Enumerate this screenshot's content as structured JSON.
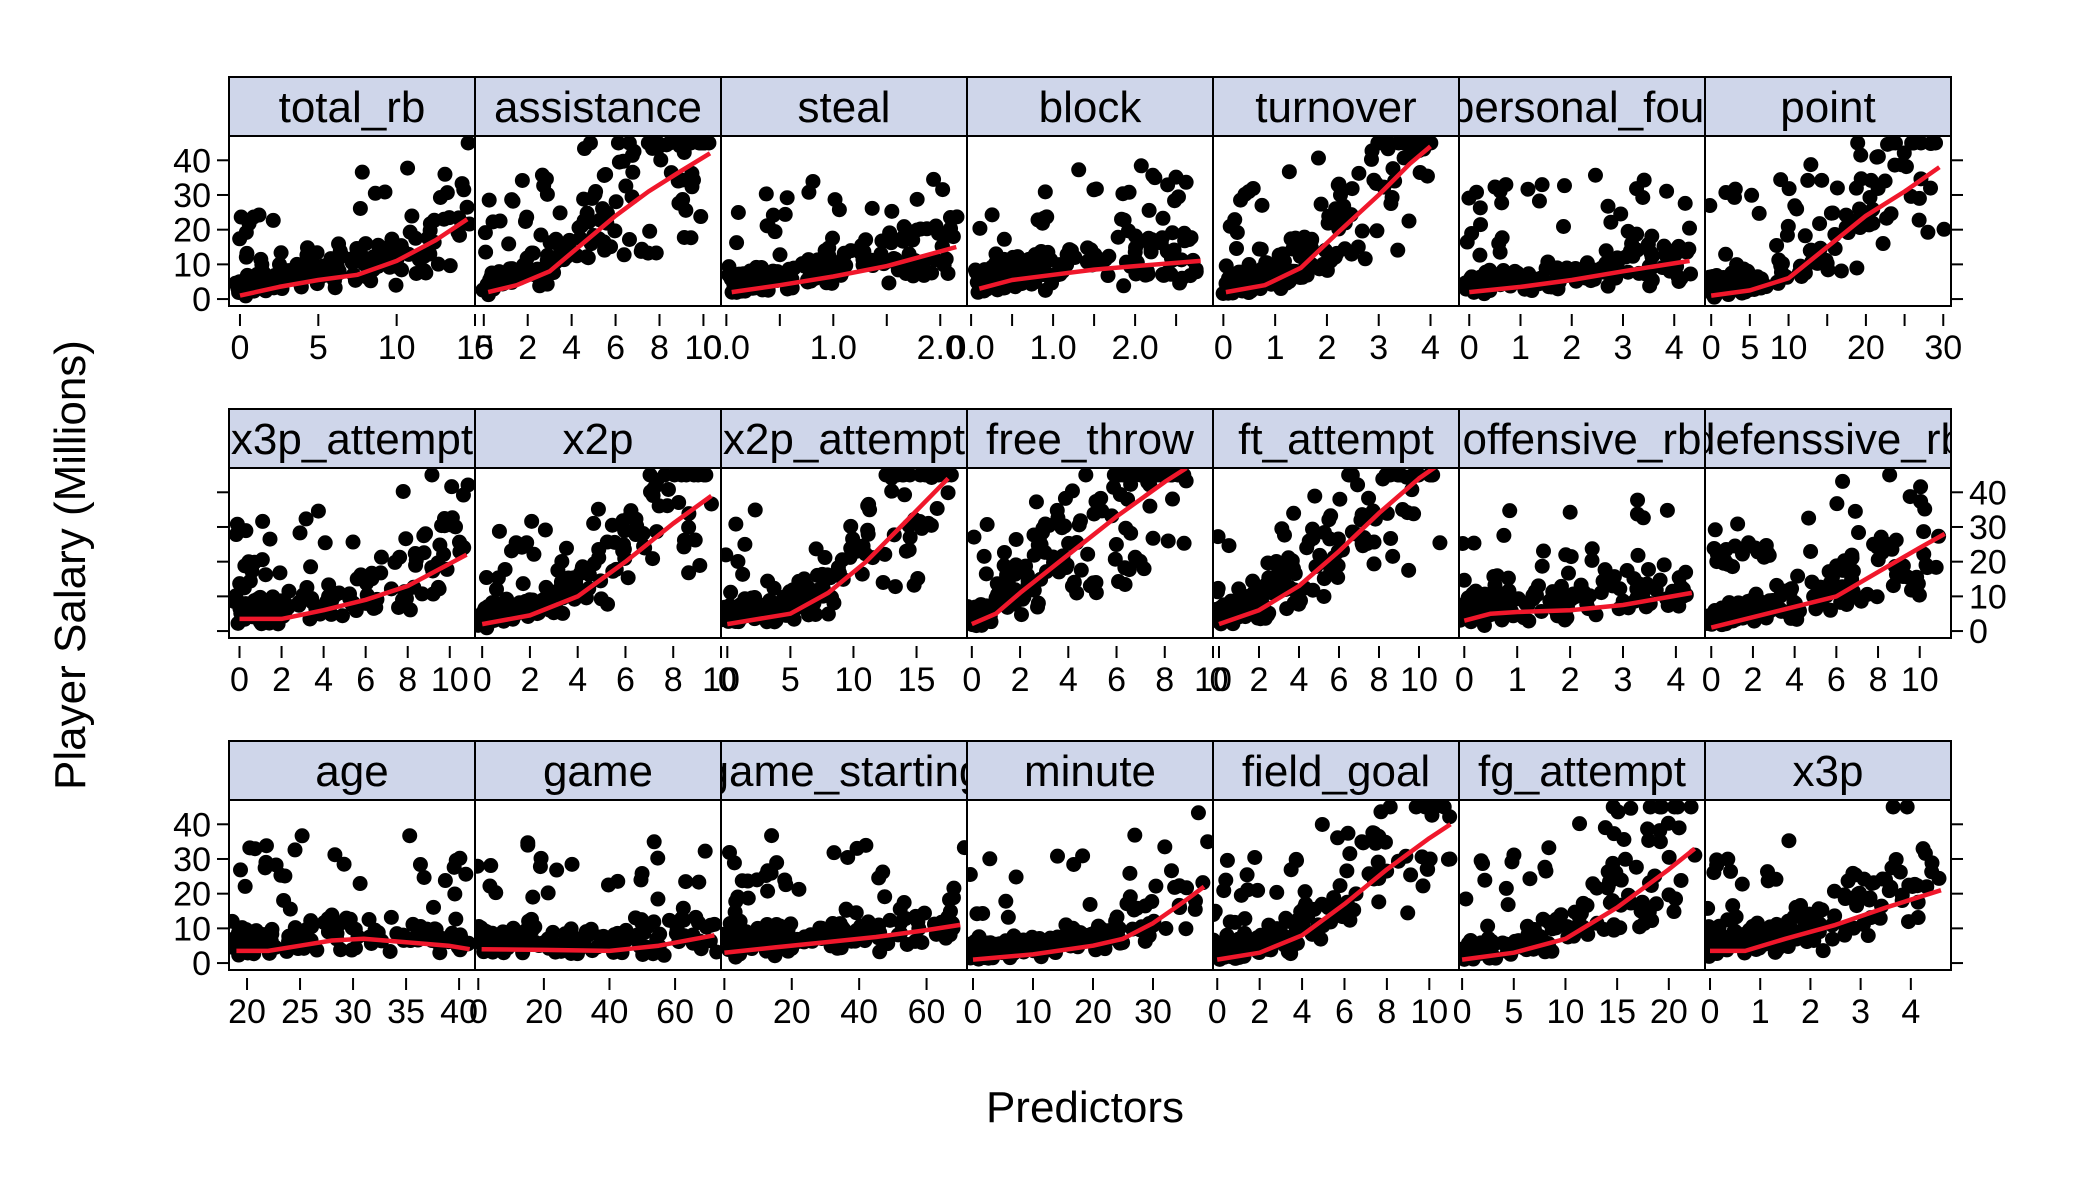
{
  "chart_data": {
    "type": "scatter",
    "layout": "trellis 7x3, strip labels on top, loess smoothers",
    "xlabel": "Predictors",
    "ylabel": "Player Salary (Millions)",
    "ylim": [
      -2,
      47
    ],
    "yticks": [
      0,
      10,
      20,
      30,
      40
    ],
    "grid": false,
    "colors": {
      "points": "#000000",
      "smoother": "#f0172b",
      "strip": "#cfd6ea",
      "frame": "#000000"
    },
    "panels": [
      {
        "row": 1,
        "col": 1,
        "label": "total_rb",
        "xlim": [
          -0.7,
          15
        ],
        "xticks": [
          0,
          5,
          10,
          15
        ],
        "xticklabels": [
          "0",
          "5",
          "10",
          "15"
        ],
        "smoother": [
          [
            0,
            1
          ],
          [
            2.5,
            3.5
          ],
          [
            5,
            5.5
          ],
          [
            7.5,
            7
          ],
          [
            10,
            11
          ],
          [
            12.5,
            17
          ],
          [
            14.5,
            23
          ]
        ]
      },
      {
        "row": 1,
        "col": 2,
        "label": "assistance",
        "xlim": [
          -0.4,
          10.8
        ],
        "xticks": [
          0,
          2,
          4,
          6,
          8,
          10
        ],
        "xticklabels": [
          "0",
          "2",
          "4",
          "6",
          "8",
          "10"
        ],
        "smoother": [
          [
            0.2,
            2
          ],
          [
            1.5,
            4
          ],
          [
            3,
            8
          ],
          [
            4.5,
            16
          ],
          [
            6,
            24
          ],
          [
            7.5,
            31
          ],
          [
            9,
            37
          ],
          [
            10.3,
            42
          ]
        ]
      },
      {
        "row": 1,
        "col": 3,
        "label": "steal",
        "xlim": [
          -0.05,
          2.25
        ],
        "xticks": [
          0,
          0.5,
          1,
          1.5,
          2
        ],
        "xticklabels": [
          "0.0",
          "",
          "1.0",
          "",
          "2.0"
        ],
        "smoother": [
          [
            0.05,
            2
          ],
          [
            0.5,
            4
          ],
          [
            1.0,
            6.5
          ],
          [
            1.5,
            9.5
          ],
          [
            2.15,
            15
          ]
        ]
      },
      {
        "row": 1,
        "col": 4,
        "label": "block",
        "xlim": [
          -0.05,
          2.95
        ],
        "xticks": [
          0,
          0.5,
          1,
          1.5,
          2,
          2.5
        ],
        "xticklabels": [
          "0.0",
          "",
          "1.0",
          "",
          "2.0",
          ""
        ],
        "smoother": [
          [
            0.1,
            3
          ],
          [
            0.5,
            5.5
          ],
          [
            1.0,
            7
          ],
          [
            1.5,
            8.5
          ],
          [
            2.0,
            9.5
          ],
          [
            2.8,
            11
          ]
        ]
      },
      {
        "row": 1,
        "col": 5,
        "label": "turnover",
        "xlim": [
          -0.2,
          4.55
        ],
        "xticks": [
          0,
          1,
          2,
          3,
          4
        ],
        "xticklabels": [
          "0",
          "1",
          "2",
          "3",
          "4"
        ],
        "smoother": [
          [
            0.05,
            2
          ],
          [
            0.8,
            4
          ],
          [
            1.5,
            9
          ],
          [
            2.2,
            19
          ],
          [
            3,
            30
          ],
          [
            3.6,
            39
          ],
          [
            4.0,
            44
          ]
        ]
      },
      {
        "row": 1,
        "col": 6,
        "label": "personal_foul",
        "xlim": [
          -0.2,
          4.6
        ],
        "xticks": [
          0,
          1,
          2,
          3,
          4
        ],
        "xticklabels": [
          "0",
          "1",
          "2",
          "3",
          "4"
        ],
        "smoother": [
          [
            0,
            2
          ],
          [
            1,
            3.5
          ],
          [
            2,
            5.5
          ],
          [
            3,
            8
          ],
          [
            4.3,
            11
          ]
        ]
      },
      {
        "row": 1,
        "col": 7,
        "label": "point",
        "xlim": [
          -0.8,
          31
        ],
        "xticks": [
          0,
          5,
          10,
          15,
          20,
          25,
          30
        ],
        "xticklabels": [
          "0",
          "5",
          "10",
          "",
          "20",
          "",
          "30"
        ],
        "smoother": [
          [
            0,
            1
          ],
          [
            5,
            2.5
          ],
          [
            10,
            6
          ],
          [
            15,
            15
          ],
          [
            20,
            24
          ],
          [
            25,
            31
          ],
          [
            29.5,
            38
          ]
        ]
      },
      {
        "row": 2,
        "col": 1,
        "label": "x3p_attempt",
        "xlim": [
          -0.5,
          11.2
        ],
        "xticks": [
          0,
          2,
          4,
          6,
          8,
          10
        ],
        "xticklabels": [
          "0",
          "2",
          "4",
          "6",
          "8",
          "10"
        ],
        "smoother": [
          [
            0,
            3.5
          ],
          [
            2,
            3.5
          ],
          [
            4,
            6
          ],
          [
            6,
            9
          ],
          [
            8,
            13
          ],
          [
            10.8,
            22
          ]
        ]
      },
      {
        "row": 2,
        "col": 2,
        "label": "x2p",
        "xlim": [
          -0.3,
          10
        ],
        "xticks": [
          0,
          2,
          4,
          6,
          8,
          10
        ],
        "xticklabels": [
          "0",
          "2",
          "4",
          "6",
          "8",
          "10"
        ],
        "smoother": [
          [
            0,
            2
          ],
          [
            2,
            4.5
          ],
          [
            4,
            10
          ],
          [
            6,
            20
          ],
          [
            8,
            31
          ],
          [
            9.6,
            39
          ]
        ]
      },
      {
        "row": 2,
        "col": 3,
        "label": "x2p_attempt",
        "xlim": [
          -0.5,
          19
        ],
        "xticks": [
          0,
          5,
          10,
          15
        ],
        "xticklabels": [
          "0",
          "5",
          "10",
          "15"
        ],
        "smoother": [
          [
            0,
            2
          ],
          [
            5,
            5
          ],
          [
            8,
            11
          ],
          [
            11,
            20
          ],
          [
            14,
            31
          ],
          [
            17.5,
            44
          ]
        ]
      },
      {
        "row": 2,
        "col": 4,
        "label": "free_throw",
        "xlim": [
          -0.2,
          10
        ],
        "xticks": [
          0,
          2,
          4,
          6,
          8,
          10
        ],
        "xticklabels": [
          "0",
          "2",
          "4",
          "6",
          "8",
          "10"
        ],
        "smoother": [
          [
            0,
            2
          ],
          [
            1,
            5
          ],
          [
            2,
            11
          ],
          [
            4,
            22
          ],
          [
            6,
            33
          ],
          [
            8,
            43
          ],
          [
            8.9,
            47
          ]
        ]
      },
      {
        "row": 2,
        "col": 5,
        "label": "ft_attempt",
        "xlim": [
          -0.3,
          12
        ],
        "xticks": [
          0,
          2,
          4,
          6,
          8,
          10
        ],
        "xticklabels": [
          "0",
          "2",
          "4",
          "6",
          "8",
          "10"
        ],
        "smoother": [
          [
            0,
            2
          ],
          [
            2,
            6
          ],
          [
            4,
            13
          ],
          [
            6,
            23
          ],
          [
            8,
            34
          ],
          [
            10,
            44
          ],
          [
            11,
            48
          ]
        ]
      },
      {
        "row": 2,
        "col": 6,
        "label": "offensive_rb",
        "xlim": [
          -0.1,
          4.55
        ],
        "xticks": [
          0,
          1,
          2,
          3,
          4
        ],
        "xticklabels": [
          "0",
          "1",
          "2",
          "3",
          "4"
        ],
        "smoother": [
          [
            0,
            3
          ],
          [
            0.5,
            5
          ],
          [
            1,
            5.5
          ],
          [
            2,
            6
          ],
          [
            3,
            7.5
          ],
          [
            4.3,
            11
          ]
        ]
      },
      {
        "row": 2,
        "col": 7,
        "label": "defenssive_rb",
        "xlim": [
          -0.3,
          11.5
        ],
        "xticks": [
          0,
          2,
          4,
          6,
          8,
          10
        ],
        "xticklabels": [
          "0",
          "2",
          "4",
          "6",
          "8",
          "10"
        ],
        "smoother": [
          [
            0,
            1
          ],
          [
            2,
            4
          ],
          [
            4,
            7
          ],
          [
            6,
            10
          ],
          [
            8,
            17
          ],
          [
            10,
            24
          ],
          [
            11.2,
            28
          ]
        ]
      },
      {
        "row": 3,
        "col": 1,
        "label": "age",
        "xlim": [
          18.3,
          41.5
        ],
        "xticks": [
          20,
          25,
          30,
          35,
          40
        ],
        "xticklabels": [
          "20",
          "25",
          "30",
          "35",
          "40"
        ],
        "smoother": [
          [
            19,
            3.5
          ],
          [
            22,
            3.5
          ],
          [
            25,
            5
          ],
          [
            28,
            6.5
          ],
          [
            31,
            7
          ],
          [
            35,
            6
          ],
          [
            39,
            5
          ],
          [
            41,
            4
          ]
        ]
      },
      {
        "row": 3,
        "col": 2,
        "label": "game",
        "xlim": [
          -1,
          74
        ],
        "xticks": [
          0,
          20,
          40,
          60
        ],
        "xticklabels": [
          "0",
          "20",
          "40",
          "60"
        ],
        "smoother": [
          [
            1,
            4
          ],
          [
            20,
            3.8
          ],
          [
            40,
            3.5
          ],
          [
            55,
            5
          ],
          [
            72,
            8
          ]
        ]
      },
      {
        "row": 3,
        "col": 3,
        "label": "game_starting",
        "xlim": [
          -1,
          72
        ],
        "xticks": [
          0,
          20,
          40,
          60
        ],
        "xticklabels": [
          "0",
          "20",
          "40",
          "60"
        ],
        "smoother": [
          [
            0,
            3
          ],
          [
            15,
            4.5
          ],
          [
            30,
            6
          ],
          [
            45,
            7.5
          ],
          [
            60,
            9.5
          ],
          [
            70,
            11
          ]
        ]
      },
      {
        "row": 3,
        "col": 4,
        "label": "minute",
        "xlim": [
          -1,
          40
        ],
        "xticks": [
          0,
          10,
          20,
          30
        ],
        "xticklabels": [
          "0",
          "10",
          "20",
          "30"
        ],
        "smoother": [
          [
            0,
            1
          ],
          [
            10,
            2.5
          ],
          [
            20,
            5
          ],
          [
            25,
            7
          ],
          [
            30,
            11.5
          ],
          [
            35,
            17.5
          ],
          [
            38.5,
            22
          ]
        ]
      },
      {
        "row": 3,
        "col": 5,
        "label": "field_goal",
        "xlim": [
          -0.2,
          11.4
        ],
        "xticks": [
          0,
          2,
          4,
          6,
          8,
          10
        ],
        "xticklabels": [
          "0",
          "2",
          "4",
          "6",
          "8",
          "10"
        ],
        "smoother": [
          [
            0,
            1
          ],
          [
            2,
            3
          ],
          [
            4,
            8
          ],
          [
            6,
            17
          ],
          [
            8,
            27
          ],
          [
            10,
            36
          ],
          [
            11,
            40
          ]
        ]
      },
      {
        "row": 3,
        "col": 6,
        "label": "fg_attempt",
        "xlim": [
          -0.3,
          23.5
        ],
        "xticks": [
          0,
          5,
          10,
          15,
          20
        ],
        "xticklabels": [
          "0",
          "5",
          "10",
          "15",
          "20"
        ],
        "smoother": [
          [
            0,
            1
          ],
          [
            5,
            3
          ],
          [
            10,
            7
          ],
          [
            15,
            16
          ],
          [
            20,
            27
          ],
          [
            22.5,
            33
          ]
        ]
      },
      {
        "row": 3,
        "col": 7,
        "label": "x3p",
        "xlim": [
          -0.1,
          4.8
        ],
        "xticks": [
          0,
          1,
          2,
          3,
          4
        ],
        "xticklabels": [
          "0",
          "1",
          "2",
          "3",
          "4"
        ],
        "smoother": [
          [
            0,
            3.5
          ],
          [
            0.7,
            3.5
          ],
          [
            1.5,
            7
          ],
          [
            2.5,
            11
          ],
          [
            3.5,
            16
          ],
          [
            4.6,
            21
          ]
        ]
      }
    ]
  }
}
